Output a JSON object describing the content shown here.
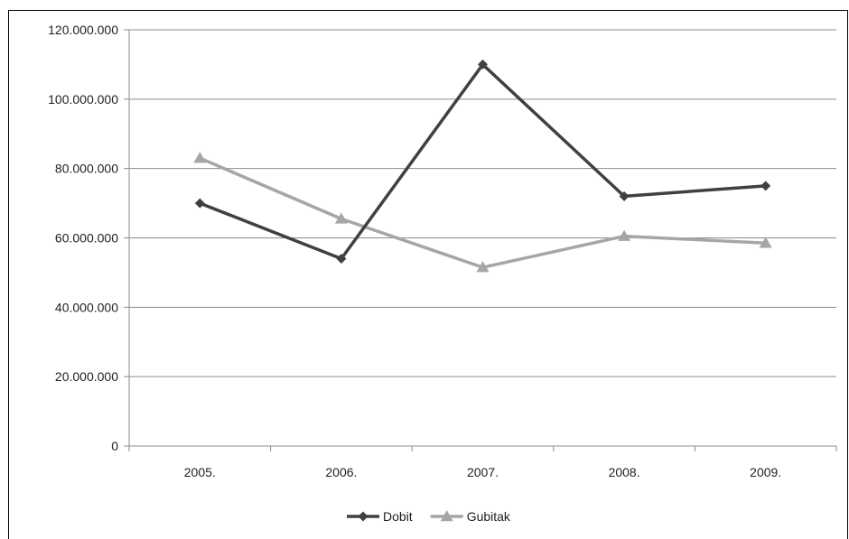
{
  "chart_data": {
    "type": "line",
    "title": "",
    "xlabel": "",
    "ylabel": "",
    "categories": [
      "2005.",
      "2006.",
      "2007.",
      "2008.",
      "2009."
    ],
    "ylim": [
      0,
      120000000
    ],
    "yticks": [
      0,
      20000000,
      40000000,
      60000000,
      80000000,
      100000000,
      120000000
    ],
    "ytick_labels": [
      "0",
      "20.000.000",
      "40.000.000",
      "60.000.000",
      "80.000.000",
      "100.000.000",
      "120.000.000"
    ],
    "grid": true,
    "legend_position": "bottom",
    "series": [
      {
        "name": "Dobit",
        "values": [
          70000000,
          54000000,
          110000000,
          72000000,
          75000000
        ],
        "color": "#404040",
        "marker": "diamond"
      },
      {
        "name": "Gubitak",
        "values": [
          83000000,
          65500000,
          51500000,
          60500000,
          58500000
        ],
        "color": "#a6a6a6",
        "marker": "triangle"
      }
    ]
  }
}
